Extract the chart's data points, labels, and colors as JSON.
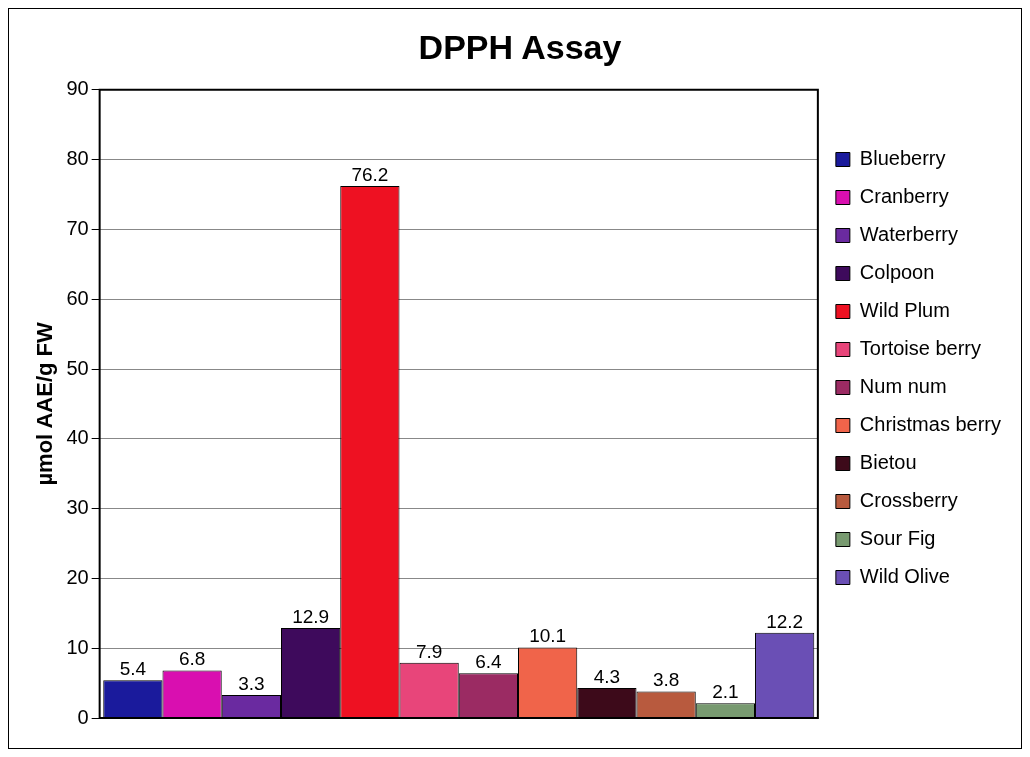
{
  "chart_data": {
    "type": "bar",
    "title": "DPPH Assay",
    "ylabel": "µmol AAE/g FW",
    "categories": [
      null
    ],
    "series": [
      {
        "name": "Blueberry",
        "color": "#1a1a9c",
        "values": [
          5.4
        ]
      },
      {
        "name": "Cranberry",
        "color": "#d90fb0",
        "values": [
          6.8
        ]
      },
      {
        "name": "Waterberry",
        "color": "#6a2aa0",
        "values": [
          3.3
        ]
      },
      {
        "name": "Colpoon",
        "color": "#3e0a5c",
        "values": [
          12.9
        ]
      },
      {
        "name": "Wild Plum",
        "color": "#ee1122",
        "values": [
          76.2
        ]
      },
      {
        "name": "Tortoise berry",
        "color": "#e8457a",
        "values": [
          7.9
        ]
      },
      {
        "name": "Num num",
        "color": "#9b2b63",
        "values": [
          6.4
        ]
      },
      {
        "name": "Christmas berry",
        "color": "#f0644a",
        "values": [
          10.1
        ]
      },
      {
        "name": "Bietou",
        "color": "#3d0a1a",
        "values": [
          4.3
        ]
      },
      {
        "name": "Crossberry",
        "color": "#b85a3e",
        "values": [
          3.8
        ]
      },
      {
        "name": "Sour Fig",
        "color": "#789a70",
        "values": [
          2.1
        ]
      },
      {
        "name": "Wild Olive",
        "color": "#6a4fb5",
        "values": [
          12.2
        ]
      }
    ],
    "ylim": [
      0,
      90
    ],
    "yticks": [
      0,
      10,
      20,
      30,
      40,
      50,
      60,
      70,
      80,
      90
    ],
    "grid": "y",
    "legend": "right",
    "data_labels": true
  }
}
